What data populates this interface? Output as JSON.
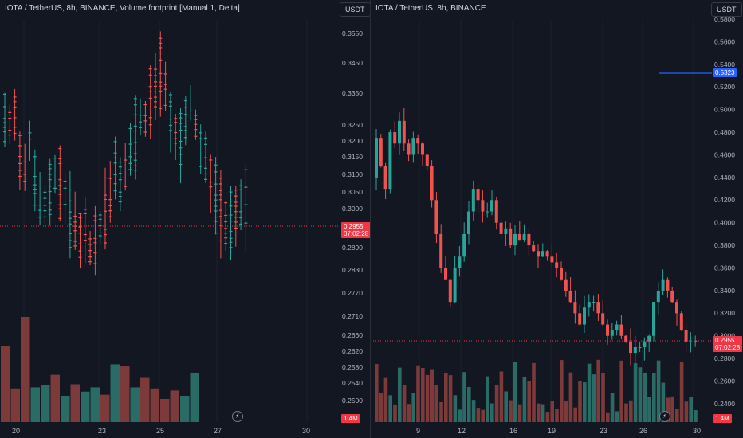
{
  "colors": {
    "background": "#131722",
    "up": "#26a69a",
    "down": "#ef5350",
    "up_volume": "#2a6b66",
    "down_volume": "#7c3a3a",
    "grid": "#1e222d",
    "current_price_line": "#f23645",
    "highlight_line": "#2962ff"
  },
  "left_chart": {
    "title": "IOTA / TetherUS, 8h, BINANCE, Volume footprint [Manual 1, Delta]",
    "currency": "USDT",
    "y_ticks": [
      "0.3550",
      "0.3450",
      "0.3350",
      "0.3250",
      "0.3200",
      "0.3150",
      "0.3100",
      "0.3050",
      "0.3000",
      "0.2890",
      "0.2830",
      "0.2770",
      "0.2710",
      "0.2660",
      "0.2620",
      "0.2580",
      "0.2540",
      "0.2500"
    ],
    "x_ticks": [
      "20",
      "23",
      "25",
      "27",
      "30"
    ],
    "price_tag": {
      "price": "0.2955",
      "countdown": "07:02:28"
    },
    "volume_tag": "1.4M",
    "flash_icon": "lightning-icon",
    "volume_bars": [
      {
        "value": 0.72,
        "dir": "down"
      },
      {
        "value": 0.32,
        "dir": "down"
      },
      {
        "value": 1.0,
        "dir": "down"
      },
      {
        "value": 0.33,
        "dir": "up"
      },
      {
        "value": 0.35,
        "dir": "up"
      },
      {
        "value": 0.45,
        "dir": "down"
      },
      {
        "value": 0.25,
        "dir": "up"
      },
      {
        "value": 0.36,
        "dir": "down"
      },
      {
        "value": 0.29,
        "dir": "up"
      },
      {
        "value": 0.33,
        "dir": "up"
      },
      {
        "value": 0.26,
        "dir": "down"
      },
      {
        "value": 0.55,
        "dir": "up"
      },
      {
        "value": 0.53,
        "dir": "down"
      },
      {
        "value": 0.33,
        "dir": "up"
      },
      {
        "value": 0.42,
        "dir": "down"
      },
      {
        "value": 0.32,
        "dir": "down"
      },
      {
        "value": 0.22,
        "dir": "down"
      },
      {
        "value": 0.3,
        "dir": "down"
      },
      {
        "value": 0.25,
        "dir": "up"
      },
      {
        "value": 0.47,
        "dir": "up"
      }
    ]
  },
  "right_chart": {
    "title": "IOTA / TetherUS, 8h, BINANCE",
    "currency": "USDT",
    "y_ticks": [
      "0.5800",
      "0.5600",
      "0.5400",
      "0.5200",
      "0.5000",
      "0.4800",
      "0.4600",
      "0.4400",
      "0.4200",
      "0.4000",
      "0.3800",
      "0.3600",
      "0.3400",
      "0.3200",
      "0.3000",
      "0.2800",
      "0.2600",
      "0.2400"
    ],
    "x_ticks": [
      "9",
      "12",
      "16",
      "19",
      "23",
      "26",
      "30"
    ],
    "price_tag": {
      "price": "0.2955",
      "countdown": "07:02:28"
    },
    "blue_tag": "0.5323",
    "volume_tag": "1.4M",
    "flash_icon": "lightning-icon"
  }
}
